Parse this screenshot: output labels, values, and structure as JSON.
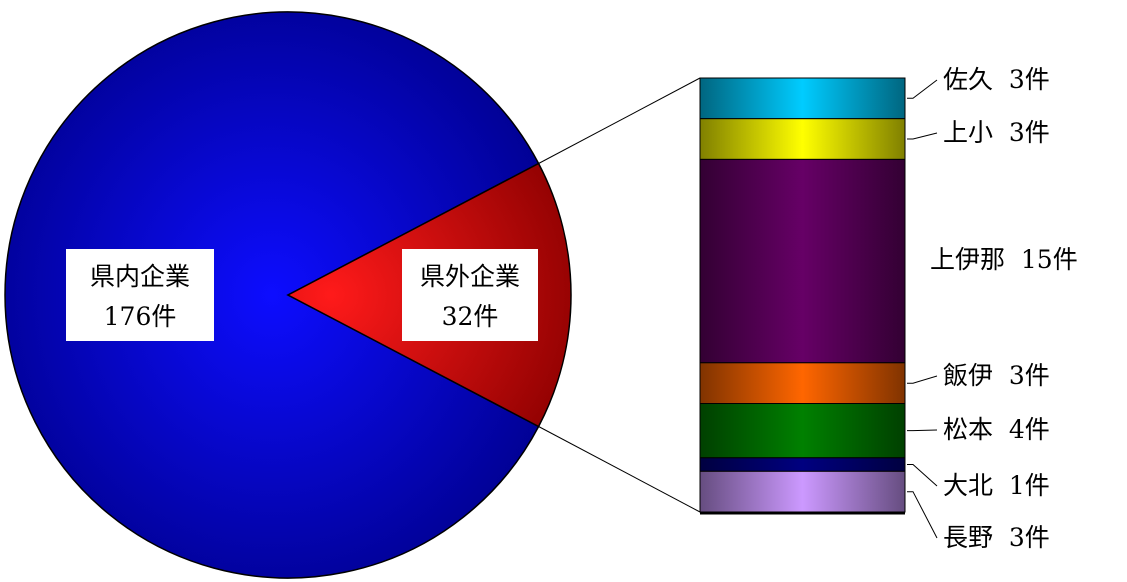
{
  "chart_data": [
    {
      "type": "pie",
      "slices": [
        {
          "label": "県内企業",
          "value_label": "176件",
          "value": 176,
          "color": "#0000ff"
        },
        {
          "label": "県外企業",
          "value_label": "32件",
          "value": 32,
          "color": "#ff0000"
        }
      ]
    },
    {
      "type": "bar",
      "stacked": true,
      "breakdown_of": "県外企業",
      "segments": [
        {
          "label": "佐久",
          "value_label": "3件",
          "value": 3,
          "color": "#00ccff"
        },
        {
          "label": "上小",
          "value_label": "3件",
          "value": 3,
          "color": "#ffff00"
        },
        {
          "label": "上伊那",
          "value_label": "15件",
          "value": 15,
          "color": "#660066"
        },
        {
          "label": "飯伊",
          "value_label": "3件",
          "value": 3,
          "color": "#ff6600"
        },
        {
          "label": "松本",
          "value_label": "4件",
          "value": 4,
          "color": "#008000"
        },
        {
          "label": "大北",
          "value_label": "1件",
          "value": 1,
          "color": "#000080"
        },
        {
          "label": "長野",
          "value_label": "3件",
          "value": 3,
          "color": "#cc99ff"
        }
      ]
    }
  ]
}
